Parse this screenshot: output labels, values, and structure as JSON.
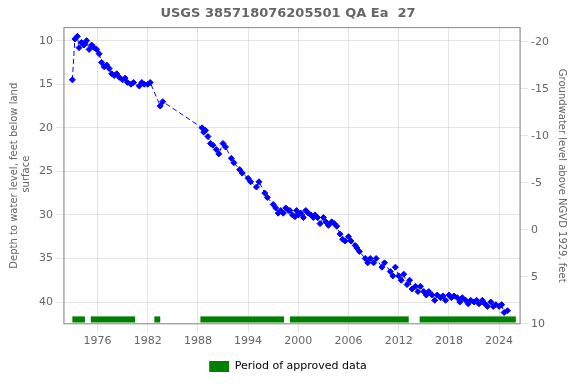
{
  "chart_data": {
    "type": "line",
    "title": "USGS 385718076205501 QA Ea  27",
    "ylabel": "Depth to water level, feet below land\n surface",
    "y2label": "Groundwater level above NGVD 1929, feet",
    "xlim": [
      1972.0,
      2026.5
    ],
    "xticks": [
      1976,
      1982,
      1988,
      1994,
      2000,
      2006,
      2012,
      2018,
      2024
    ],
    "ylim": [
      42.5,
      8.5
    ],
    "yticks": [
      10,
      15,
      20,
      25,
      30,
      35,
      40
    ],
    "y2lim": [
      10.0,
      -21.5
    ],
    "y2ticks": [
      10,
      5,
      0,
      -5,
      -10,
      -15,
      -20
    ],
    "grid": true,
    "legend": "bottom",
    "x": [
      1973.0,
      1973.3,
      1973.6,
      1973.8,
      1974.1,
      1974.4,
      1974.7,
      1975.0,
      1975.3,
      1975.6,
      1975.9,
      1976.2,
      1976.5,
      1976.8,
      1977.1,
      1977.4,
      1977.7,
      1978.0,
      1978.3,
      1978.6,
      1979.0,
      1979.3,
      1979.6,
      1980.0,
      1980.3,
      1981.0,
      1981.3,
      1981.6,
      1982.0,
      1982.3,
      1983.5,
      1983.8,
      1988.5,
      1988.7,
      1988.9,
      1989.2,
      1989.5,
      1989.8,
      1990.2,
      1990.5,
      1991.0,
      1991.3,
      1992.0,
      1992.3,
      1993.0,
      1993.3,
      1994.0,
      1994.3,
      1995.0,
      1995.3,
      1996.0,
      1996.3,
      1997.0,
      1997.3,
      1997.6,
      1997.9,
      1998.2,
      1998.5,
      1998.8,
      1999.0,
      1999.3,
      1999.6,
      1999.8,
      2000.0,
      2000.3,
      2000.6,
      2000.9,
      2001.2,
      2001.5,
      2001.8,
      2002.0,
      2002.3,
      2002.6,
      2003.0,
      2003.3,
      2003.6,
      2004.0,
      2004.3,
      2004.6,
      2005.0,
      2005.3,
      2005.6,
      2006.0,
      2006.3,
      2006.8,
      2007.0,
      2007.3,
      2008.0,
      2008.3,
      2008.6,
      2009.0,
      2009.3,
      2010.0,
      2010.3,
      2011.0,
      2011.3,
      2011.6,
      2012.0,
      2012.3,
      2012.6,
      2013.0,
      2013.3,
      2013.6,
      2014.0,
      2014.3,
      2014.6,
      2015.0,
      2015.3,
      2015.6,
      2016.0,
      2016.3,
      2016.6,
      2017.0,
      2017.3,
      2017.6,
      2018.0,
      2018.3,
      2018.6,
      2019.0,
      2019.3,
      2019.6,
      2020.0,
      2020.3,
      2020.6,
      2021.0,
      2021.3,
      2021.6,
      2022.0,
      2022.3,
      2022.6,
      2023.0,
      2023.3,
      2023.6,
      2024.0,
      2024.3,
      2024.6,
      2025.0
    ],
    "series": [
      {
        "color": "#0000ff",
        "marker": "diamond",
        "line_style": "dashed",
        "values": [
          14.5,
          9.8,
          9.5,
          10.8,
          10.2,
          10.5,
          10.0,
          11.0,
          10.5,
          10.8,
          11.0,
          11.5,
          12.5,
          13.0,
          12.8,
          13.2,
          13.8,
          14.0,
          13.8,
          14.2,
          14.5,
          14.3,
          14.8,
          15.0,
          14.8,
          15.2,
          14.8,
          15.0,
          15.0,
          14.8,
          17.5,
          17.0,
          20.0,
          20.5,
          20.3,
          21.0,
          21.8,
          22.0,
          22.5,
          23.0,
          21.8,
          22.2,
          23.5,
          24.0,
          24.8,
          25.2,
          25.8,
          26.2,
          26.8,
          26.2,
          27.5,
          28.0,
          28.8,
          29.2,
          29.8,
          29.5,
          29.8,
          29.2,
          29.5,
          29.5,
          30.0,
          30.2,
          29.5,
          30.0,
          29.8,
          30.3,
          29.5,
          29.8,
          30.0,
          30.3,
          30.0,
          30.3,
          31.0,
          30.3,
          30.8,
          31.2,
          30.8,
          31.0,
          31.3,
          32.2,
          32.8,
          33.0,
          32.5,
          33.0,
          33.5,
          33.8,
          34.2,
          35.0,
          35.5,
          35.0,
          35.5,
          35.0,
          36.0,
          35.5,
          36.5,
          37.0,
          36.0,
          37.0,
          37.5,
          36.8,
          38.0,
          37.5,
          38.5,
          38.2,
          38.8,
          38.2,
          38.8,
          39.2,
          38.8,
          39.2,
          39.8,
          39.2,
          39.5,
          39.3,
          39.8,
          39.2,
          39.5,
          39.3,
          39.5,
          40.0,
          39.5,
          39.8,
          40.2,
          39.8,
          40.0,
          39.8,
          40.2,
          39.8,
          40.2,
          40.5,
          40.0,
          40.5,
          40.3,
          40.5,
          40.3,
          41.2,
          41.0
        ]
      },
      {
        "name": "Period of approved data",
        "type": "bar",
        "color": "#008000",
        "segments": [
          [
            1973.0,
            1974.5
          ],
          [
            1975.2,
            1980.5
          ],
          [
            1982.8,
            1983.5
          ],
          [
            1988.3,
            1998.3
          ],
          [
            1999.0,
            2013.2
          ],
          [
            2014.5,
            2026.0
          ]
        ],
        "y": 42.0,
        "height": 0.7
      }
    ]
  }
}
